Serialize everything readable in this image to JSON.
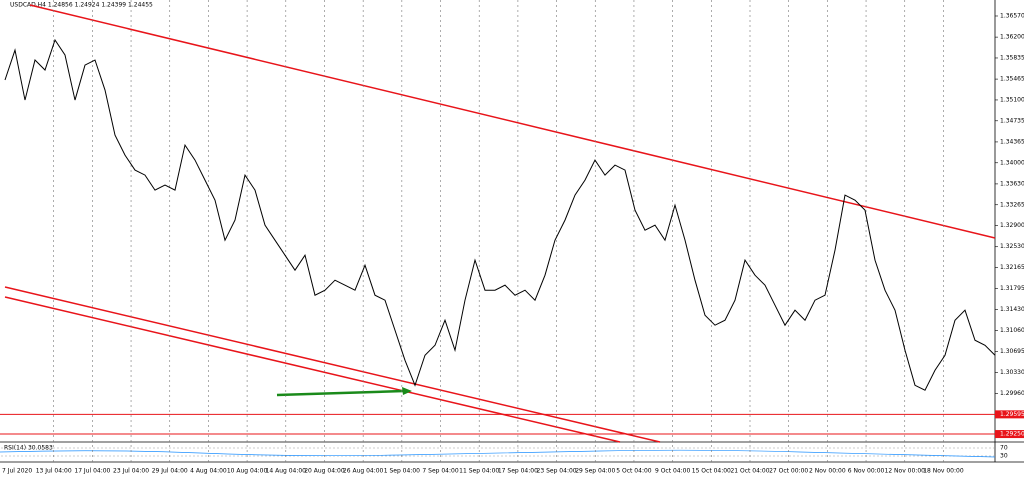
{
  "chart_data": {
    "type": "line",
    "title": "USDCAD,H4  1.24856 1.24924 1.24399 1.24455",
    "series": [
      {
        "name": "USDCAD,H4",
        "color": "#000000",
        "values": [
          1.35449,
          1.35974,
          1.35098,
          1.35799,
          1.35624,
          1.3615,
          1.35887,
          1.35098,
          1.35711,
          1.35799,
          1.35273,
          1.34485,
          1.34134,
          1.33872,
          1.33784,
          1.33521,
          1.33609,
          1.33521,
          1.3431,
          1.34047,
          1.33696,
          1.33346,
          1.32645,
          1.32996,
          1.33784,
          1.33521,
          1.32908,
          1.32645,
          1.32382,
          1.32119,
          1.32382,
          1.31681,
          1.31769,
          1.31944,
          1.31857,
          1.31769,
          1.32207,
          1.31681,
          1.31594,
          1.31068,
          1.30542,
          1.30104,
          1.3063,
          1.30805,
          1.31243,
          1.30718,
          1.31594,
          1.32295,
          1.31769,
          1.31769,
          1.31857,
          1.31681,
          1.31769,
          1.31594,
          1.32032,
          1.32645,
          1.32996,
          1.33434,
          1.33696,
          1.34047,
          1.33784,
          1.33959,
          1.33872,
          1.33171,
          1.3282,
          1.32908,
          1.32645,
          1.33258,
          1.32645,
          1.31944,
          1.31331,
          1.31156,
          1.31243,
          1.31594,
          1.32295,
          1.32032,
          1.31857,
          1.31506,
          1.31156,
          1.31419,
          1.31243,
          1.31594,
          1.31681,
          1.3247,
          1.33434,
          1.33346,
          1.33171,
          1.32295,
          1.31769,
          1.31419,
          1.30718,
          1.30104,
          1.30017,
          1.30367,
          1.3063,
          1.31243,
          1.31419,
          1.30893,
          1.30805,
          1.3063
        ]
      }
    ],
    "ylim": [
      1.29111,
      1.3685
    ],
    "yticks": [
      {
        "value": 1.3657,
        "label": "1.36570"
      },
      {
        "value": 1.362,
        "label": "1.36200"
      },
      {
        "value": 1.35835,
        "label": "1.35835"
      },
      {
        "value": 1.35465,
        "label": "1.35465"
      },
      {
        "value": 1.351,
        "label": "1.35100"
      },
      {
        "value": 1.34735,
        "label": "1.34735"
      },
      {
        "value": 1.34365,
        "label": "1.34365"
      },
      {
        "value": 1.34,
        "label": "1.34000"
      },
      {
        "value": 1.3363,
        "label": "1.33630"
      },
      {
        "value": 1.33265,
        "label": "1.33265"
      },
      {
        "value": 1.329,
        "label": "1.32900"
      },
      {
        "value": 1.3253,
        "label": "1.32530"
      },
      {
        "value": 1.32165,
        "label": "1.32165"
      },
      {
        "value": 1.31795,
        "label": "1.31795"
      },
      {
        "value": 1.3143,
        "label": "1.31430"
      },
      {
        "value": 1.3106,
        "label": "1.31060"
      },
      {
        "value": 1.30695,
        "label": "1.30695"
      },
      {
        "value": 1.3033,
        "label": "1.30330"
      },
      {
        "value": 1.2996,
        "label": "1.29960"
      }
    ],
    "levels": [
      {
        "value": 1.29595,
        "label": "1.29595"
      },
      {
        "value": 1.2925,
        "label": "1.29250"
      }
    ],
    "time_labels": [
      "7 Jul 2020",
      "13 Jul 04:00",
      "17 Jul 04:00",
      "23 Jul 04:00",
      "29 Jul 04:00",
      "4 Aug 04:00",
      "10 Aug 04:00",
      "14 Aug 04:00",
      "20 Aug 04:00",
      "26 Aug 04:00",
      "1 Sep 04:00",
      "7 Sep 04:00",
      "11 Sep 04:00",
      "17 Sep 04:00",
      "23 Sep 04:00",
      "29 Sep 04:00",
      "5 Oct 04:00",
      "9 Oct 04:00",
      "15 Oct 04:00",
      "21 Oct 04:00",
      "27 Oct 00:00",
      "2 Nov 00:00",
      "6 Nov 00:00",
      "12 Nov 00:00",
      "18 Nov 00:00"
    ],
    "indicator": {
      "label": "RSI(14) 30.0583",
      "ticks": [
        70,
        30
      ]
    },
    "grid": true
  }
}
